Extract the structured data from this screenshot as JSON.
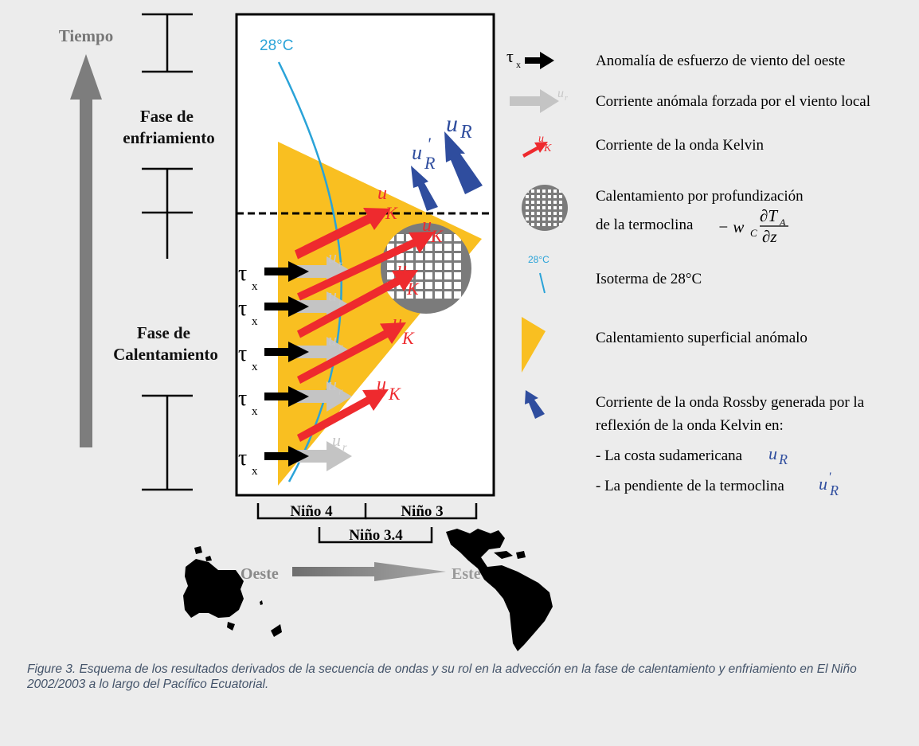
{
  "time_label": "Tiempo",
  "phases": {
    "cooling_line1": "Fase de",
    "cooling_line2": "enfriamiento",
    "warming_line1": "Fase de",
    "warming_line2": "Calentamiento"
  },
  "isotherm_label": "28°C",
  "symbols": {
    "tau": "τ",
    "tau_sub": "x",
    "u": "u",
    "sub_r": "r",
    "sub_K": "K",
    "sub_R": "R",
    "prime": "'"
  },
  "regions": {
    "nino4": "Niño 4",
    "nino3": "Niño 3",
    "nino34": "Niño 3.4"
  },
  "direction": {
    "west": "Oeste",
    "east": "Este"
  },
  "legend": {
    "wind": "Anomalía de esfuerzo de viento del oeste",
    "local_current": "Corriente anómala forzada por el viento local",
    "kelvin": "Corriente de la onda Kelvin",
    "heating_line1": "Calentamiento por profundización",
    "heating_line2": "de la termoclina",
    "heating_formula": "− w",
    "heating_formula_sub": "C",
    "heating_num": "∂T",
    "heating_num_sub": "A",
    "heating_den": "∂z",
    "isotherm_small": "28°C",
    "isotherm": "Isoterma de 28°C",
    "surface": "Calentamiento superficial anómalo",
    "rossby_line1": "Corriente de la onda Rossby generada por la",
    "rossby_line2": "reflexión de la onda Kelvin en:",
    "rossby_item1": "- La costa sudamericana",
    "rossby_item2": "- La pendiente de la termoclina"
  },
  "caption": "Figure 3. Esquema de los resultados derivados de la secuencia de ondas y su rol en la advección en la fase de calentamiento y enfriamiento en El Niño 2002/2003 a lo largo del Pacífico Ecuatorial.",
  "colors": {
    "yellow": "#f9bf21",
    "red": "#ee2a2e",
    "blue_arrow": "#2f4d9e",
    "isotherm": "#2aa3d8",
    "grey_arrow": "#c4c4c4",
    "time_arrow": "#7d7d7d",
    "circle": "#7b7b7b"
  }
}
